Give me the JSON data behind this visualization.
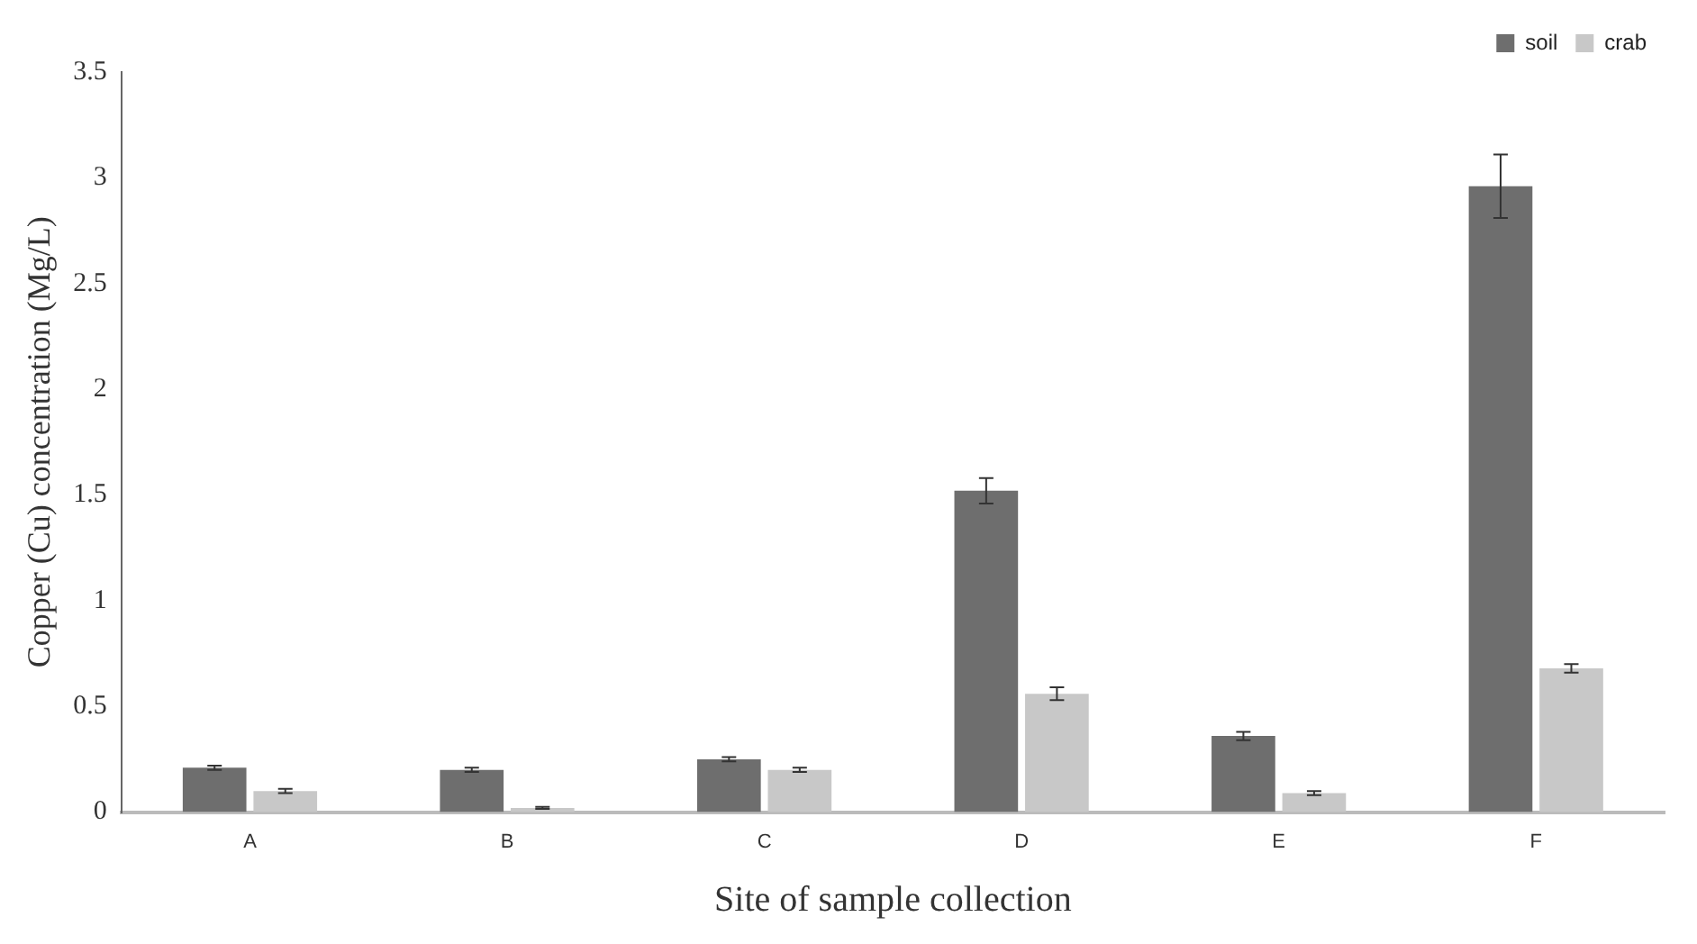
{
  "chart_data": {
    "type": "bar",
    "xlabel": "Site of sample collection",
    "ylabel": "Copper (Cu) concentration (Mg/L)",
    "categories": [
      "A",
      "B",
      "C",
      "D",
      "E",
      "F"
    ],
    "series": [
      {
        "name": "soil",
        "color": "#6e6e6e",
        "values": [
          0.21,
          0.2,
          0.25,
          1.52,
          0.36,
          2.96
        ],
        "errors": [
          0.01,
          0.01,
          0.01,
          0.06,
          0.02,
          0.15
        ]
      },
      {
        "name": "crab",
        "color": "#c8c8c8",
        "values": [
          0.1,
          0.02,
          0.2,
          0.56,
          0.09,
          0.68
        ],
        "errors": [
          0.01,
          0.005,
          0.01,
          0.03,
          0.01,
          0.02
        ]
      }
    ],
    "ylim": [
      0,
      3.5
    ],
    "yticks": [
      0,
      0.5,
      1,
      1.5,
      2,
      2.5,
      3,
      3.5
    ],
    "grid": false,
    "legend": "top right"
  }
}
